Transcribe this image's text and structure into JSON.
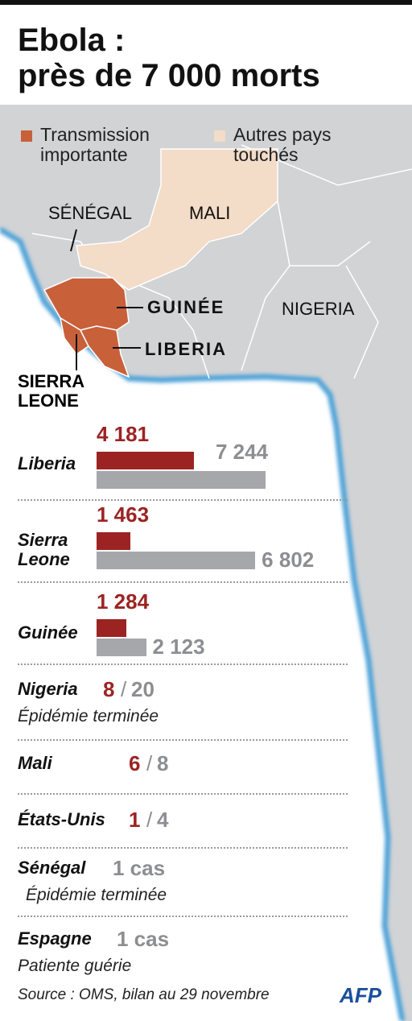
{
  "title": "Ebola :\nprès de 7 000 morts",
  "legend": [
    {
      "label": "Transmission\nimportante",
      "color": "#c8603a"
    },
    {
      "label": "Autres pays\ntouchés",
      "color": "#f3dcc8"
    }
  ],
  "map_labels": {
    "senegal": "SÉNÉGAL",
    "mali": "MALI",
    "guinee": "GUINÉE",
    "liberia": "LIBERIA",
    "nigeria": "NIGERIA",
    "sierra_leone": "SIERRA\nLEONE"
  },
  "chart_data": {
    "type": "bar",
    "orientation": "horizontal",
    "categories": [
      "Liberia",
      "Sierra\nLeone",
      "Guinée"
    ],
    "series": [
      {
        "color": "#9b2423",
        "values": [
          4181,
          1463,
          1284
        ],
        "value_labels": [
          "4 181",
          "1 463",
          "1 284"
        ]
      },
      {
        "color": "#a6a7aa",
        "values": [
          7244,
          6802,
          2123
        ],
        "value_labels": [
          "7 244",
          "6 802",
          "2 123"
        ]
      }
    ]
  },
  "others": [
    {
      "country": "Nigeria",
      "deaths": "8",
      "separator": "/",
      "cases": "20",
      "note": "Épidémie terminée"
    },
    {
      "country": "Mali",
      "deaths": "6",
      "separator": "/",
      "cases": "8"
    },
    {
      "country": "États-Unis",
      "deaths": "1",
      "separator": "/",
      "cases": "4"
    },
    {
      "country": "Sénégal",
      "cases": "1 cas",
      "note": "Épidémie terminée"
    },
    {
      "country": "Espagne",
      "cases": "1 cas",
      "note": "Patiente guérie"
    }
  ],
  "source": "Source : OMS, bilan au 29 novembre",
  "logo": "AFP"
}
